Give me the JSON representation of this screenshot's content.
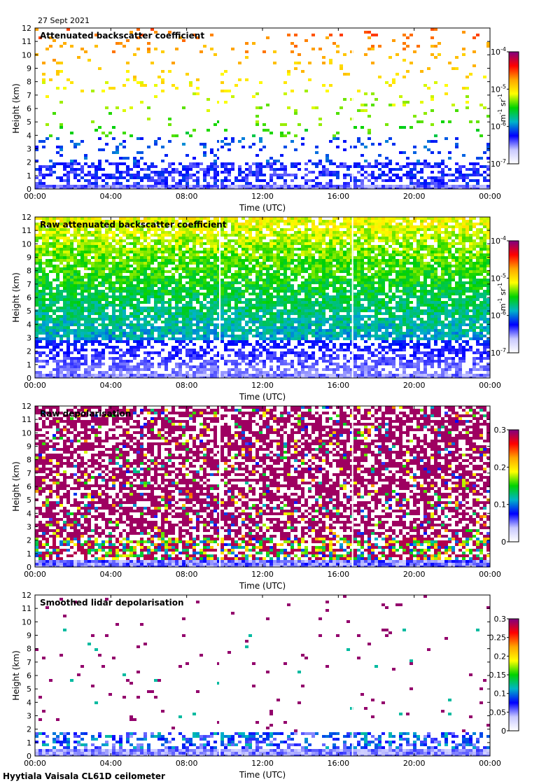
{
  "date_label": "27 Sept 2021",
  "footer_label": "Hyytiala Vaisala CL61D ceilometer",
  "colors": {
    "cmap": [
      "#ffffff",
      "#c8c8ff",
      "#0000ff",
      "#00b4c8",
      "#00d200",
      "#ffff00",
      "#ffa500",
      "#ff0000",
      "#7f0080"
    ],
    "gap": "#ffffff",
    "frame": "#000000"
  },
  "chart_data": [
    {
      "type": "heatmap",
      "title": "Attenuated backscatter coefficient",
      "xlabel": "Time (UTC)",
      "ylabel": "Height (km)",
      "x_ticks": [
        "00:00",
        "04:00",
        "08:00",
        "12:00",
        "16:00",
        "20:00",
        "00:00"
      ],
      "y_ticks": [
        "0",
        "1",
        "2",
        "3",
        "4",
        "5",
        "6",
        "7",
        "8",
        "9",
        "10",
        "11",
        "12"
      ],
      "ylim": [
        0,
        12
      ],
      "xlim_hours": [
        0,
        24
      ],
      "data_gaps_hours": [
        9.75,
        16.75
      ],
      "colorbar": {
        "scale": "log",
        "ticks": [
          {
            "base": "10",
            "exp": "-4"
          },
          {
            "base": "10",
            "exp": "-5"
          },
          {
            "base": "10",
            "exp": "-6"
          },
          {
            "base": "10",
            "exp": "-7"
          }
        ],
        "unit": {
          "m": "m",
          "m_exp": "-1",
          "sr": "sr",
          "sr_exp": "-1"
        }
      },
      "field": {
        "profile": "att",
        "description_level": 1
      }
    },
    {
      "type": "heatmap",
      "title": "Raw attenuated backscatter coefficient",
      "xlabel": "Time (UTC)",
      "ylabel": "Height (km)",
      "x_ticks": [
        "00:00",
        "04:00",
        "08:00",
        "12:00",
        "16:00",
        "20:00",
        "00:00"
      ],
      "y_ticks": [
        "0",
        "1",
        "2",
        "3",
        "4",
        "5",
        "6",
        "7",
        "8",
        "9",
        "10",
        "11",
        "12"
      ],
      "ylim": [
        0,
        12
      ],
      "xlim_hours": [
        0,
        24
      ],
      "data_gaps_hours": [
        9.75,
        16.75
      ],
      "colorbar": {
        "scale": "log",
        "ticks": [
          {
            "base": "10",
            "exp": "-4"
          },
          {
            "base": "10",
            "exp": "-5"
          },
          {
            "base": "10",
            "exp": "-6"
          },
          {
            "base": "10",
            "exp": "-7"
          }
        ],
        "unit": {
          "m": "m",
          "m_exp": "-1",
          "sr": "sr",
          "sr_exp": "-1"
        }
      },
      "field": {
        "profile": "raw",
        "description_level": 2
      }
    },
    {
      "type": "heatmap",
      "title": "Raw depolarisation",
      "xlabel": "Time (UTC)",
      "ylabel": "Height (km)",
      "x_ticks": [
        "00:00",
        "04:00",
        "08:00",
        "12:00",
        "16:00",
        "20:00",
        "00:00"
      ],
      "y_ticks": [
        "0",
        "1",
        "2",
        "3",
        "4",
        "5",
        "6",
        "7",
        "8",
        "9",
        "10",
        "11",
        "12"
      ],
      "ylim": [
        0,
        12
      ],
      "xlim_hours": [
        0,
        24
      ],
      "data_gaps_hours": [
        9.75,
        16.75
      ],
      "colorbar": {
        "scale": "linear",
        "ticks": [
          "0.3",
          "0.2",
          "0.1",
          "0"
        ]
      },
      "field": {
        "profile": "rawdepol",
        "description_level": 3
      }
    },
    {
      "type": "heatmap",
      "title": "Smoothed lidar depolarisation",
      "xlabel": "Time (UTC)",
      "ylabel": "Height (km)",
      "x_ticks": [
        "00:00",
        "04:00",
        "08:00",
        "12:00",
        "16:00",
        "20:00",
        "00:00"
      ],
      "y_ticks": [
        "0",
        "1",
        "2",
        "3",
        "4",
        "5",
        "6",
        "7",
        "8",
        "9",
        "10",
        "11",
        "12"
      ],
      "ylim": [
        0,
        12
      ],
      "xlim_hours": [
        0,
        24
      ],
      "data_gaps_hours": [
        9.75,
        16.75
      ],
      "colorbar": {
        "scale": "linear",
        "ticks": [
          "0.3",
          "0.25",
          "0.2",
          "0.15",
          "0.1",
          "0.05",
          "0"
        ]
      },
      "field": {
        "profile": "smoothdepol",
        "description_level": 4
      }
    }
  ]
}
